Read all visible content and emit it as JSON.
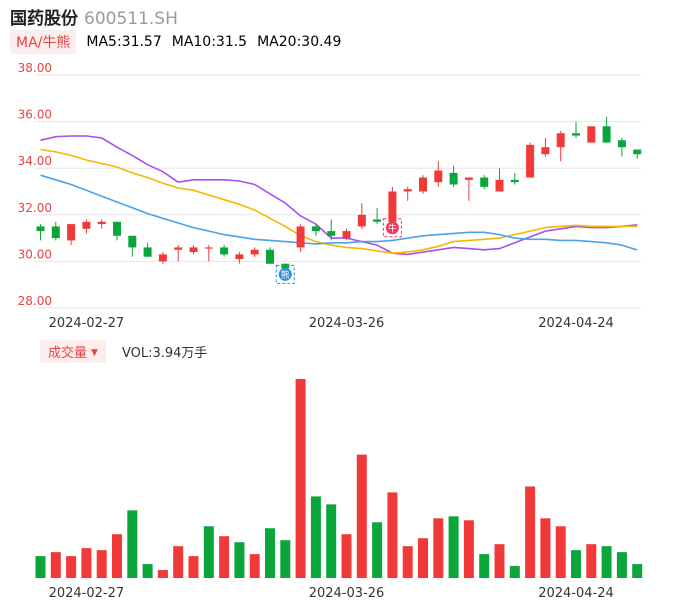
{
  "header": {
    "stock_name": "国药股份",
    "stock_code": "600511.SH"
  },
  "ma_legend": {
    "type_label": "MA/牛熊",
    "items": [
      {
        "label": "MA5:31.57",
        "color": "#a94ef0"
      },
      {
        "label": "MA10:31.5",
        "color": "#f5b800"
      },
      {
        "label": "MA20:30.49",
        "color": "#4aa3e8"
      }
    ]
  },
  "volume_legend": {
    "type_label": "成交量",
    "caret": "▼",
    "value_label": "VOL:3.94万手"
  },
  "colors": {
    "up": "#f03a3a",
    "down": "#0aa63c",
    "grid": "#e6e6e6",
    "axis_text": "#e64545",
    "date_text": "#333333"
  },
  "chart_data": [
    {
      "type": "candlestick",
      "y_ticks": [
        "38.00",
        "36.00",
        "34.00",
        "32.00",
        "30.00",
        "28.00"
      ],
      "ylim": [
        28,
        38
      ],
      "x_tick_labels": [
        {
          "index": 3,
          "label": "2024-02-27"
        },
        {
          "index": 20,
          "label": "2024-03-26"
        },
        {
          "index": 35,
          "label": "2024-04-24"
        }
      ],
      "markers": [
        {
          "index": 16,
          "label": "熊",
          "color": "#2a8fe0"
        },
        {
          "index": 23,
          "label": "牛",
          "color": "#f03a5a"
        }
      ],
      "candles": [
        {
          "o": 31.5,
          "c": 31.3,
          "h": 31.6,
          "l": 30.9
        },
        {
          "o": 31.5,
          "c": 31.0,
          "h": 31.7,
          "l": 30.9
        },
        {
          "o": 30.9,
          "c": 31.6,
          "h": 31.6,
          "l": 30.7
        },
        {
          "o": 31.4,
          "c": 31.7,
          "h": 31.8,
          "l": 31.2
        },
        {
          "o": 31.6,
          "c": 31.7,
          "h": 31.8,
          "l": 31.4
        },
        {
          "o": 31.7,
          "c": 31.1,
          "h": 31.7,
          "l": 30.9
        },
        {
          "o": 31.1,
          "c": 30.6,
          "h": 31.1,
          "l": 30.2
        },
        {
          "o": 30.6,
          "c": 30.2,
          "h": 30.8,
          "l": 30.2
        },
        {
          "o": 30.0,
          "c": 30.3,
          "h": 30.4,
          "l": 29.9
        },
        {
          "o": 30.5,
          "c": 30.6,
          "h": 30.7,
          "l": 30.0
        },
        {
          "o": 30.4,
          "c": 30.6,
          "h": 30.7,
          "l": 30.3
        },
        {
          "o": 30.6,
          "c": 30.6,
          "h": 30.7,
          "l": 30.0
        },
        {
          "o": 30.6,
          "c": 30.3,
          "h": 30.7,
          "l": 30.2
        },
        {
          "o": 30.1,
          "c": 30.3,
          "h": 30.4,
          "l": 29.9
        },
        {
          "o": 30.3,
          "c": 30.5,
          "h": 30.6,
          "l": 30.2
        },
        {
          "o": 30.5,
          "c": 29.9,
          "h": 30.6,
          "l": 29.9
        },
        {
          "o": 29.9,
          "c": 29.7,
          "h": 29.9,
          "l": 29.5
        },
        {
          "o": 30.6,
          "c": 31.5,
          "h": 31.6,
          "l": 30.4
        },
        {
          "o": 31.5,
          "c": 31.3,
          "h": 31.6,
          "l": 31.1
        },
        {
          "o": 31.3,
          "c": 31.1,
          "h": 31.8,
          "l": 30.9
        },
        {
          "o": 31.0,
          "c": 31.3,
          "h": 31.4,
          "l": 30.9
        },
        {
          "o": 31.5,
          "c": 32.0,
          "h": 32.5,
          "l": 31.4
        },
        {
          "o": 31.8,
          "c": 31.7,
          "h": 32.3,
          "l": 31.6
        },
        {
          "o": 31.7,
          "c": 33.0,
          "h": 33.2,
          "l": 31.6
        },
        {
          "o": 33.0,
          "c": 33.1,
          "h": 33.2,
          "l": 32.6
        },
        {
          "o": 33.0,
          "c": 33.6,
          "h": 33.7,
          "l": 32.9
        },
        {
          "o": 33.4,
          "c": 33.9,
          "h": 34.3,
          "l": 33.2
        },
        {
          "o": 33.8,
          "c": 33.3,
          "h": 34.1,
          "l": 33.2
        },
        {
          "o": 33.5,
          "c": 33.6,
          "h": 33.6,
          "l": 32.6
        },
        {
          "o": 33.6,
          "c": 33.2,
          "h": 33.7,
          "l": 33.1
        },
        {
          "o": 33.0,
          "c": 33.5,
          "h": 34.0,
          "l": 33.0
        },
        {
          "o": 33.5,
          "c": 33.4,
          "h": 33.8,
          "l": 33.3
        },
        {
          "o": 33.6,
          "c": 35.0,
          "h": 35.1,
          "l": 33.6
        },
        {
          "o": 34.6,
          "c": 34.9,
          "h": 35.3,
          "l": 34.5
        },
        {
          "o": 34.9,
          "c": 35.5,
          "h": 35.6,
          "l": 34.3
        },
        {
          "o": 35.5,
          "c": 35.4,
          "h": 36.0,
          "l": 35.3
        },
        {
          "o": 35.1,
          "c": 35.8,
          "h": 35.8,
          "l": 35.1
        },
        {
          "o": 35.8,
          "c": 35.1,
          "h": 36.2,
          "l": 35.1
        },
        {
          "o": 35.2,
          "c": 34.9,
          "h": 35.3,
          "l": 34.5
        },
        {
          "o": 34.8,
          "c": 34.6,
          "h": 34.8,
          "l": 34.4
        }
      ],
      "ma_series": [
        {
          "name": "MA5",
          "color": "#a94ef0",
          "values": [
            35.2,
            35.35,
            35.38,
            35.38,
            35.3,
            34.9,
            34.55,
            34.15,
            33.85,
            33.4,
            33.5,
            33.5,
            33.5,
            33.45,
            33.3,
            32.9,
            32.5,
            31.95,
            31.6,
            31.0,
            31.0,
            30.85,
            30.7,
            30.35,
            30.3,
            30.4,
            30.5,
            30.6,
            30.55,
            30.5,
            30.55,
            30.8,
            31.05,
            31.3,
            31.4,
            31.5,
            31.45,
            31.45,
            31.5,
            31.57
          ]
        },
        {
          "name": "MA10",
          "color": "#f5b800",
          "values": [
            34.8,
            34.7,
            34.55,
            34.35,
            34.2,
            34.05,
            33.8,
            33.6,
            33.35,
            33.15,
            33.05,
            32.85,
            32.65,
            32.45,
            32.2,
            31.85,
            31.5,
            31.1,
            30.85,
            30.7,
            30.6,
            30.55,
            30.45,
            30.35,
            30.4,
            30.5,
            30.65,
            30.85,
            30.9,
            30.95,
            31.0,
            31.15,
            31.3,
            31.45,
            31.5,
            31.55,
            31.5,
            31.5,
            31.5,
            31.5
          ]
        },
        {
          "name": "MA20",
          "color": "#4aa3e8",
          "values": [
            33.7,
            33.5,
            33.3,
            33.05,
            32.8,
            32.55,
            32.3,
            32.05,
            31.85,
            31.65,
            31.45,
            31.3,
            31.15,
            31.05,
            30.95,
            30.9,
            30.85,
            30.8,
            30.75,
            30.8,
            30.8,
            30.85,
            30.85,
            30.9,
            31.0,
            31.1,
            31.15,
            31.2,
            31.25,
            31.25,
            31.15,
            31.0,
            30.95,
            30.95,
            30.9,
            30.9,
            30.85,
            30.8,
            30.7,
            30.49
          ]
        }
      ]
    },
    {
      "type": "bar",
      "series_role": "volume",
      "x_tick_labels": [
        {
          "index": 3,
          "label": "2024-02-27"
        },
        {
          "index": 20,
          "label": "2024-03-26"
        },
        {
          "index": 35,
          "label": "2024-04-24"
        }
      ],
      "ylim": [
        0,
        10
      ],
      "values": [
        1.1,
        1.3,
        1.1,
        1.5,
        1.4,
        2.2,
        3.4,
        0.7,
        0.4,
        1.6,
        1.1,
        2.6,
        2.1,
        1.8,
        1.2,
        2.5,
        1.9,
        10.0,
        4.1,
        3.7,
        2.2,
        6.2,
        2.8,
        4.3,
        1.6,
        2.0,
        3.0,
        3.1,
        2.9,
        1.2,
        1.7,
        0.6,
        4.6,
        3.0,
        2.6,
        1.4,
        1.7,
        1.6,
        1.3,
        0.7
      ],
      "up": [
        false,
        true,
        true,
        true,
        true,
        true,
        false,
        false,
        true,
        true,
        true,
        false,
        true,
        false,
        true,
        false,
        false,
        true,
        false,
        false,
        true,
        true,
        false,
        true,
        true,
        true,
        true,
        false,
        true,
        false,
        true,
        false,
        true,
        true,
        true,
        false,
        true,
        false,
        false,
        false
      ]
    }
  ]
}
